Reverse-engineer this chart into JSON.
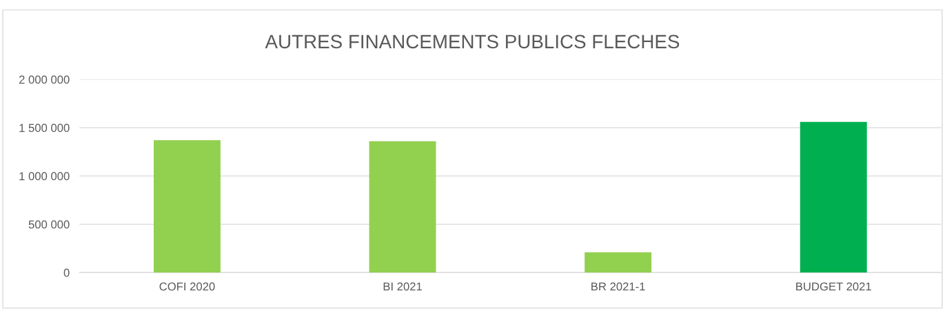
{
  "chart_data": {
    "type": "bar",
    "title": "AUTRES FINANCEMENTS PUBLICS FLECHES",
    "categories": [
      "COFI 2020",
      "BI 2021",
      "BR 2021-1",
      "BUDGET 2021"
    ],
    "values": [
      1370000,
      1360000,
      210000,
      1560000
    ],
    "colors": [
      "#92d050",
      "#92d050",
      "#92d050",
      "#00b050"
    ],
    "ylim": [
      0,
      2000000
    ],
    "yticks": [
      0,
      {
        "value": 500000,
        "label": "500 000"
      },
      {
        "value": 1000000,
        "label": "1 000 000"
      },
      {
        "value": 1500000,
        "label": "1 500 000"
      },
      {
        "value": 2000000,
        "label": "2 000 000"
      }
    ],
    "grid": "y",
    "legend": false
  }
}
